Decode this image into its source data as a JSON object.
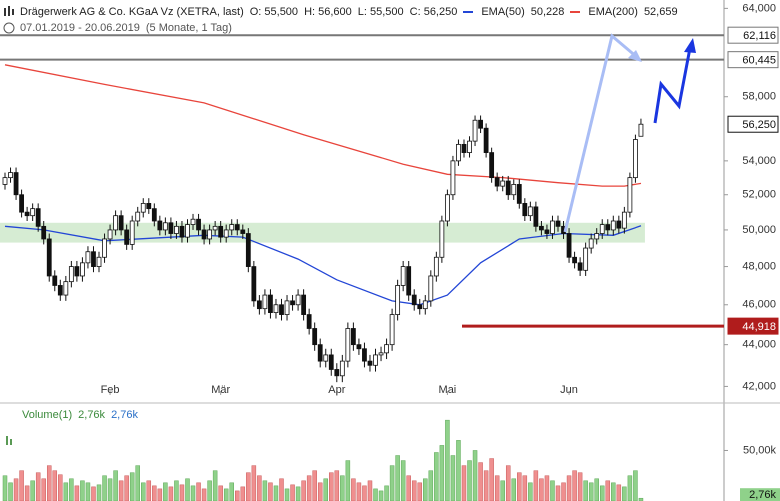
{
  "header": {
    "title": "Drägerwerk AG & Co. KGaA Vz (XETRA, last)",
    "ohlc": [
      "O: 55,500",
      "H: 56,600",
      "L: 55,500",
      "C: 56,250"
    ],
    "range": "07.01.2019 - 20.06.2019",
    "period": "(5 Monate, 1 Tag)"
  },
  "chart_data": {
    "type": "candlestick",
    "log_scale": true,
    "categories": [
      null,
      null,
      null,
      null,
      null,
      null,
      null,
      null,
      null,
      null,
      null,
      null,
      null,
      null,
      null,
      null,
      null,
      null,
      null,
      "Feb",
      null,
      null,
      null,
      null,
      null,
      null,
      null,
      null,
      null,
      null,
      null,
      null,
      null,
      null,
      null,
      null,
      null,
      null,
      null,
      "Mär",
      null,
      null,
      null,
      null,
      null,
      null,
      null,
      null,
      null,
      null,
      null,
      null,
      null,
      null,
      null,
      null,
      null,
      null,
      null,
      null,
      "Apr",
      null,
      null,
      null,
      null,
      null,
      null,
      null,
      null,
      null,
      null,
      null,
      null,
      null,
      null,
      null,
      null,
      null,
      null,
      null,
      "Mai",
      null,
      null,
      null,
      null,
      null,
      null,
      null,
      null,
      null,
      null,
      null,
      null,
      null,
      null,
      null,
      null,
      null,
      null,
      null,
      null,
      null,
      "Jun",
      null,
      null,
      null,
      null,
      null,
      null,
      null,
      null,
      null,
      null,
      null,
      null,
      null
    ],
    "open": [
      52600,
      53000,
      53300,
      52000,
      51000,
      50800,
      51200,
      50200,
      49500,
      47500,
      47000,
      46500,
      47200,
      48000,
      47500,
      48200,
      48800,
      48000,
      48500,
      49500,
      50000,
      50800,
      50000,
      49200,
      50500,
      51000,
      51500,
      51200,
      50500,
      50000,
      50400,
      49800,
      50200,
      49600,
      50300,
      50600,
      50000,
      49500,
      50000,
      50200,
      49600,
      50000,
      50300,
      50000,
      49800,
      48000,
      46200,
      45800,
      46500,
      45600,
      46000,
      45500,
      46200,
      46000,
      46500,
      45500,
      44800,
      44000,
      43200,
      43500,
      42800,
      42500,
      43200,
      44800,
      44000,
      43800,
      43200,
      43000,
      43500,
      43600,
      44000,
      45500,
      47000,
      48000,
      46500,
      46000,
      45800,
      46200,
      47500,
      48500,
      50500,
      52000,
      54000,
      55000,
      54500,
      55200,
      56500,
      56000,
      54500,
      53000,
      52500,
      52800,
      52000,
      52600,
      51500,
      50800,
      51300,
      50200,
      50000,
      49800,
      50500,
      50200,
      49800,
      48500,
      48200,
      47800,
      49000,
      49500,
      49800,
      50300,
      50000,
      50500,
      50100,
      51000,
      53000,
      55500
    ],
    "high": [
      53300,
      53600,
      53600,
      52300,
      51300,
      51500,
      51500,
      50500,
      49800,
      47800,
      47300,
      47500,
      48300,
      48300,
      48500,
      49100,
      49100,
      48800,
      49800,
      50300,
      51100,
      51100,
      50300,
      50800,
      51300,
      51800,
      51800,
      51500,
      50800,
      50700,
      50700,
      50500,
      50500,
      50600,
      50900,
      50900,
      50300,
      50300,
      50500,
      50500,
      50300,
      50600,
      50600,
      50300,
      50100,
      48300,
      46500,
      46800,
      46800,
      46300,
      46300,
      46500,
      46500,
      46800,
      46800,
      45800,
      45100,
      44300,
      43800,
      43800,
      43100,
      43500,
      45100,
      45100,
      44300,
      44100,
      43500,
      43800,
      43900,
      44300,
      45800,
      47300,
      48300,
      48300,
      46800,
      46300,
      46500,
      47800,
      48800,
      50800,
      52300,
      54300,
      55300,
      55300,
      55500,
      56800,
      56800,
      56300,
      54800,
      53300,
      53100,
      53100,
      52900,
      52900,
      51800,
      51600,
      51600,
      50500,
      50300,
      50800,
      50800,
      50500,
      50100,
      48800,
      48500,
      49300,
      49800,
      50100,
      50600,
      50600,
      50800,
      50800,
      51300,
      53300,
      55600,
      56600
    ],
    "low": [
      52300,
      52700,
      51700,
      50700,
      50500,
      50500,
      49900,
      49200,
      47200,
      46700,
      46200,
      46200,
      46900,
      47200,
      47200,
      47900,
      47700,
      47700,
      48200,
      49200,
      49700,
      49700,
      48900,
      48900,
      50200,
      50700,
      50900,
      50200,
      49700,
      49700,
      49500,
      49500,
      49300,
      49300,
      50000,
      49700,
      49200,
      49200,
      49700,
      49300,
      49300,
      49700,
      49700,
      49500,
      47700,
      45900,
      45500,
      45500,
      45300,
      45300,
      45200,
      45200,
      45700,
      45700,
      45200,
      44500,
      43700,
      42900,
      42900,
      42500,
      42200,
      42200,
      42900,
      43700,
      43500,
      42900,
      42700,
      42700,
      43200,
      43300,
      43700,
      45200,
      46700,
      46200,
      45700,
      45500,
      45500,
      45900,
      47200,
      48200,
      50200,
      51700,
      53700,
      54200,
      54200,
      54900,
      55700,
      54200,
      52700,
      52200,
      52200,
      51700,
      51700,
      51200,
      50500,
      50500,
      49900,
      49700,
      49500,
      49500,
      49900,
      49500,
      48200,
      47900,
      47500,
      47500,
      48700,
      49200,
      49500,
      49700,
      49700,
      49800,
      49800,
      50700,
      52700,
      55500
    ],
    "close": [
      53000,
      53300,
      52000,
      51000,
      50800,
      51200,
      50200,
      49500,
      47500,
      47000,
      46500,
      47200,
      48000,
      47500,
      48200,
      48800,
      48000,
      48500,
      49500,
      50000,
      50800,
      50000,
      49200,
      50500,
      51000,
      51500,
      51200,
      50500,
      50000,
      50400,
      49800,
      50200,
      49600,
      50300,
      50600,
      50000,
      49500,
      50000,
      50200,
      49600,
      50000,
      50300,
      50000,
      49800,
      48000,
      46200,
      45800,
      46500,
      45600,
      46000,
      45500,
      46200,
      46000,
      46500,
      45500,
      44800,
      44000,
      43200,
      43500,
      42800,
      42500,
      43200,
      44800,
      44000,
      43800,
      43200,
      43000,
      43500,
      43600,
      44000,
      45500,
      47000,
      48000,
      46500,
      46000,
      45800,
      46200,
      47500,
      48500,
      50500,
      52000,
      54000,
      55000,
      54500,
      55200,
      56500,
      56000,
      54500,
      53000,
      52500,
      52800,
      52000,
      52600,
      51500,
      50800,
      51300,
      50200,
      50000,
      49800,
      50500,
      50200,
      49800,
      48500,
      48200,
      47800,
      49000,
      49500,
      49800,
      50300,
      50000,
      50500,
      50100,
      51000,
      53000,
      55300,
      56250
    ],
    "ylim": [
      41600,
      64600
    ],
    "yticks": [
      {
        "value": 42000,
        "label": "42,000"
      },
      {
        "value": 44000,
        "label": "44,000"
      },
      {
        "value": 46000,
        "label": "46,000"
      },
      {
        "value": 48000,
        "label": "48,000"
      },
      {
        "value": 50000,
        "label": "50,000"
      },
      {
        "value": 52000,
        "label": "52,000"
      },
      {
        "value": 54000,
        "label": "54,000"
      },
      {
        "value": 58000,
        "label": "58,000"
      },
      {
        "value": 64000,
        "label": "64,000"
      }
    ],
    "series": [
      {
        "name": "EMA(50)",
        "color": "#2346d6",
        "x": [
          0,
          7,
          18,
          36,
          43,
          53,
          60,
          70,
          75,
          80,
          86,
          93,
          101,
          110,
          115
        ],
        "values": [
          50200,
          50000,
          49400,
          49700,
          49600,
          48400,
          47300,
          46200,
          46000,
          46500,
          48200,
          49500,
          49800,
          49700,
          50228
        ],
        "last_label": "50,228"
      },
      {
        "name": "EMA(200)",
        "color": "#e8453c",
        "x": [
          0,
          18,
          36,
          54,
          72,
          80,
          90,
          100,
          108,
          112,
          115
        ],
        "values": [
          60100,
          58800,
          57600,
          55600,
          53800,
          53200,
          53000,
          52700,
          52500,
          52500,
          52659
        ],
        "last_label": "52,659"
      }
    ],
    "zone": [
      49300,
      50400
    ],
    "levels": [
      {
        "value": 62116,
        "label": "62,116",
        "color": "#777777"
      },
      {
        "value": 60445,
        "label": "60,445",
        "color": "#777777"
      },
      {
        "value": 44918,
        "label": "44,918",
        "color": "#b01c1c"
      }
    ],
    "last": {
      "value": 56250,
      "label": "56,250"
    },
    "volume": {
      "name": "Volume(1)",
      "up_color": "#8fd18a",
      "down_color": "#ef8f8f",
      "current_label": "2,76k",
      "values": [
        25,
        18,
        22,
        30,
        15,
        20,
        28,
        22,
        35,
        30,
        26,
        18,
        22,
        15,
        20,
        18,
        14,
        16,
        25,
        22,
        30,
        20,
        25,
        28,
        35,
        18,
        20,
        15,
        12,
        18,
        14,
        20,
        16,
        22,
        15,
        18,
        12,
        20,
        30,
        15,
        12,
        18,
        10,
        14,
        28,
        35,
        25,
        20,
        18,
        15,
        22,
        12,
        16,
        14,
        20,
        25,
        30,
        18,
        22,
        28,
        30,
        25,
        40,
        22,
        18,
        15,
        20,
        12,
        10,
        15,
        35,
        45,
        40,
        25,
        20,
        18,
        22,
        30,
        48,
        55,
        80,
        45,
        60,
        35,
        40,
        50,
        38,
        30,
        42,
        25,
        20,
        35,
        22,
        28,
        25,
        18,
        30,
        22,
        25,
        20,
        15,
        18,
        25,
        30,
        28,
        20,
        18,
        22,
        15,
        20,
        18,
        16,
        14,
        25,
        30,
        2.76
      ],
      "ylim": [
        0,
        95
      ],
      "yticks": [
        {
          "value": 50,
          "label": "50,00k"
        }
      ]
    }
  }
}
